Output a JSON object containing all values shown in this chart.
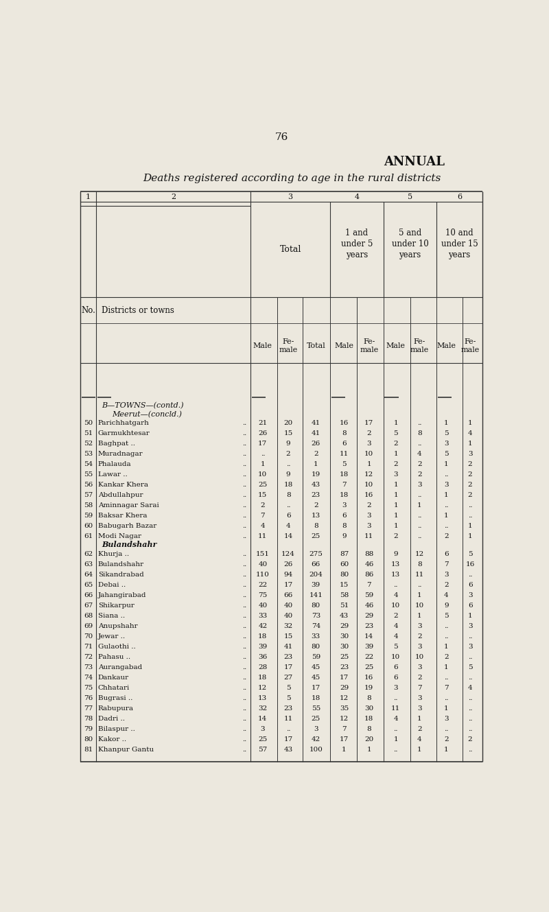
{
  "page_num": "76",
  "title1": "ANNUAL",
  "title2": "Deaths registered according to age in the rural districts",
  "bg_color": "#ece8de",
  "rows": [
    {
      "no": "50",
      "name": "Parichhatgarh",
      "dots": "..",
      "male": "21",
      "female": "20",
      "total": "41",
      "c4m": "16",
      "c4f": "17",
      "c5m": "1",
      "c5f": "..",
      "c6m": "1",
      "c6f": "1"
    },
    {
      "no": "51",
      "name": "Garmukhtesar",
      "dots": "..",
      "male": "26",
      "female": "15",
      "total": "41",
      "c4m": "8",
      "c4f": "2",
      "c5m": "5",
      "c5f": "8",
      "c6m": "5",
      "c6f": "4"
    },
    {
      "no": "52",
      "name": "Baghpat ..",
      "dots": "..",
      "male": "17",
      "female": "9",
      "total": "26",
      "c4m": "6",
      "c4f": "3",
      "c5m": "2",
      "c5f": "..",
      "c6m": "3",
      "c6f": "1"
    },
    {
      "no": "53",
      "name": "Muradnagar",
      "dots": "..",
      "male": "..",
      "female": "2",
      "total": "2",
      "c4m": "11",
      "c4f": "10",
      "c5m": "1",
      "c5f": "4",
      "c6m": "5",
      "c6f": "3"
    },
    {
      "no": "54",
      "name": "Phalauda",
      "dots": "..",
      "male": "1",
      "female": "..",
      "total": "1",
      "c4m": "5",
      "c4f": "1",
      "c5m": "2",
      "c5f": "2",
      "c6m": "1",
      "c6f": "2"
    },
    {
      "no": "55",
      "name": "Lawar ..",
      "dots": "..",
      "male": "10",
      "female": "9",
      "total": "19",
      "c4m": "18",
      "c4f": "12",
      "c5m": "3",
      "c5f": "2",
      "c6m": "..",
      "c6f": "2"
    },
    {
      "no": "56",
      "name": "Kankar Khera",
      "dots": "..",
      "male": "25",
      "female": "18",
      "total": "43",
      "c4m": "7",
      "c4f": "10",
      "c5m": "1",
      "c5f": "3",
      "c6m": "3",
      "c6f": "2"
    },
    {
      "no": "57",
      "name": "Abdullahpur",
      "dots": "..",
      "male": "15",
      "female": "8",
      "total": "23",
      "c4m": "18",
      "c4f": "16",
      "c5m": "1",
      "c5f": "..",
      "c6m": "1",
      "c6f": "2"
    },
    {
      "no": "58",
      "name": "Aminnagar Sarai",
      "dots": "..",
      "male": "2",
      "female": "..",
      "total": "2",
      "c4m": "3",
      "c4f": "2",
      "c5m": "1",
      "c5f": "1",
      "c6m": "..",
      "c6f": ".."
    },
    {
      "no": "59",
      "name": "Baksar Khera",
      "dots": "..",
      "male": "7",
      "female": "6",
      "total": "13",
      "c4m": "6",
      "c4f": "3",
      "c5m": "1",
      "c5f": "..",
      "c6m": "1",
      "c6f": ".."
    },
    {
      "no": "60",
      "name": "Babugarh Bazar",
      "dots": "..",
      "male": "4",
      "female": "4",
      "total": "8",
      "c4m": "8",
      "c4f": "3",
      "c5m": "1",
      "c5f": "..",
      "c6m": "..",
      "c6f": "1"
    },
    {
      "no": "61",
      "name": "Modi Nagar",
      "dots": "..",
      "male": "11",
      "female": "14",
      "total": "25",
      "c4m": "9",
      "c4f": "11",
      "c5m": "2",
      "c5f": "..",
      "c6m": "2",
      "c6f": "1"
    },
    {
      "no": "62",
      "name": "Khurja ..",
      "dots": "..",
      "male": "151",
      "female": "124",
      "total": "275",
      "c4m": "87",
      "c4f": "88",
      "c5m": "9",
      "c5f": "12",
      "c6m": "6",
      "c6f": "5"
    },
    {
      "no": "63",
      "name": "Bulandshahr",
      "dots": "..",
      "male": "40",
      "female": "26",
      "total": "66",
      "c4m": "60",
      "c4f": "46",
      "c5m": "13",
      "c5f": "8",
      "c6m": "7",
      "c6f": "16"
    },
    {
      "no": "64",
      "name": "Sikandrabad",
      "dots": "..",
      "male": "110",
      "female": "94",
      "total": "204",
      "c4m": "80",
      "c4f": "86",
      "c5m": "13",
      "c5f": "11",
      "c6m": "3",
      "c6f": ".."
    },
    {
      "no": "65",
      "name": "Debai ..",
      "dots": "..",
      "male": "22",
      "female": "17",
      "total": "39",
      "c4m": "15",
      "c4f": "7",
      "c5m": "..",
      "c5f": "..",
      "c6m": "2",
      "c6f": "6"
    },
    {
      "no": "66",
      "name": "Jahangirabad",
      "dots": "..",
      "male": "75",
      "female": "66",
      "total": "141",
      "c4m": "58",
      "c4f": "59",
      "c5m": "4",
      "c5f": "1",
      "c6m": "4",
      "c6f": "3"
    },
    {
      "no": "67",
      "name": "Shikarpur",
      "dots": "..",
      "male": "40",
      "female": "40",
      "total": "80",
      "c4m": "51",
      "c4f": "46",
      "c5m": "10",
      "c5f": "10",
      "c6m": "9",
      "c6f": "6"
    },
    {
      "no": "68",
      "name": "Siana ..",
      "dots": "..",
      "male": "33",
      "female": "40",
      "total": "73",
      "c4m": "43",
      "c4f": "29",
      "c5m": "2",
      "c5f": "1",
      "c6m": "5",
      "c6f": "1"
    },
    {
      "no": "69",
      "name": "Anupshahr",
      "dots": "..",
      "male": "42",
      "female": "32",
      "total": "74",
      "c4m": "29",
      "c4f": "23",
      "c5m": "4",
      "c5f": "3",
      "c6m": "..",
      "c6f": "3"
    },
    {
      "no": "70",
      "name": "Jewar ..",
      "dots": "..",
      "male": "18",
      "female": "15",
      "total": "33",
      "c4m": "30",
      "c4f": "14",
      "c5m": "4",
      "c5f": "2",
      "c6m": "..",
      "c6f": ".."
    },
    {
      "no": "71",
      "name": "Gulaothi ..",
      "dots": "..",
      "male": "39",
      "female": "41",
      "total": "80",
      "c4m": "30",
      "c4f": "39",
      "c5m": "5",
      "c5f": "3",
      "c6m": "1",
      "c6f": "3"
    },
    {
      "no": "72",
      "name": "Pahasu ..",
      "dots": "..",
      "male": "36",
      "female": "23",
      "total": "59",
      "c4m": "25",
      "c4f": "22",
      "c5m": "10",
      "c5f": "10",
      "c6m": "2",
      "c6f": ".."
    },
    {
      "no": "73",
      "name": "Aurangabad",
      "dots": "..",
      "male": "28",
      "female": "17",
      "total": "45",
      "c4m": "23",
      "c4f": "25",
      "c5m": "6",
      "c5f": "3",
      "c6m": "1",
      "c6f": "5"
    },
    {
      "no": "74",
      "name": "Dankaur",
      "dots": "..",
      "male": "18",
      "female": "27",
      "total": "45",
      "c4m": "17",
      "c4f": "16",
      "c5m": "6",
      "c5f": "2",
      "c6m": "..",
      "c6f": ".."
    },
    {
      "no": "75",
      "name": "Chhatari",
      "dots": "..",
      "male": "12",
      "female": "5",
      "total": "17",
      "c4m": "29",
      "c4f": "19",
      "c5m": "3",
      "c5f": "7",
      "c6m": "7",
      "c6f": "4"
    },
    {
      "no": "76",
      "name": "Bugrasi ..",
      "dots": "..",
      "male": "13",
      "female": "5",
      "total": "18",
      "c4m": "12",
      "c4f": "8",
      "c5m": "..",
      "c5f": "3",
      "c6m": "..",
      "c6f": ".."
    },
    {
      "no": "77",
      "name": "Rabupura",
      "dots": "..",
      "male": "32",
      "female": "23",
      "total": "55",
      "c4m": "35",
      "c4f": "30",
      "c5m": "11",
      "c5f": "3",
      "c6m": "1",
      "c6f": ".."
    },
    {
      "no": "78",
      "name": "Dadri ..",
      "dots": "..",
      "male": "14",
      "female": "11",
      "total": "25",
      "c4m": "12",
      "c4f": "18",
      "c5m": "4",
      "c5f": "1",
      "c6m": "3",
      "c6f": ".."
    },
    {
      "no": "79",
      "name": "Bilaspur ..",
      "dots": "..",
      "male": "3",
      "female": "..",
      "total": "3",
      "c4m": "7",
      "c4f": "8",
      "c5m": "..",
      "c5f": "2",
      "c6m": "..",
      "c6f": ".."
    },
    {
      "no": "80",
      "name": "Kakor ..",
      "dots": "..",
      "male": "25",
      "female": "17",
      "total": "42",
      "c4m": "17",
      "c4f": "20",
      "c5m": "1",
      "c5f": "4",
      "c6m": "2",
      "c6f": "2"
    },
    {
      "no": "81",
      "name": "Khanpur Gantu",
      "dots": "..",
      "male": "57",
      "female": "43",
      "total": "100",
      "c4m": "1",
      "c4f": "1",
      "c5m": "..",
      "c5f": "1",
      "c6m": "1",
      "c6f": ".."
    }
  ]
}
